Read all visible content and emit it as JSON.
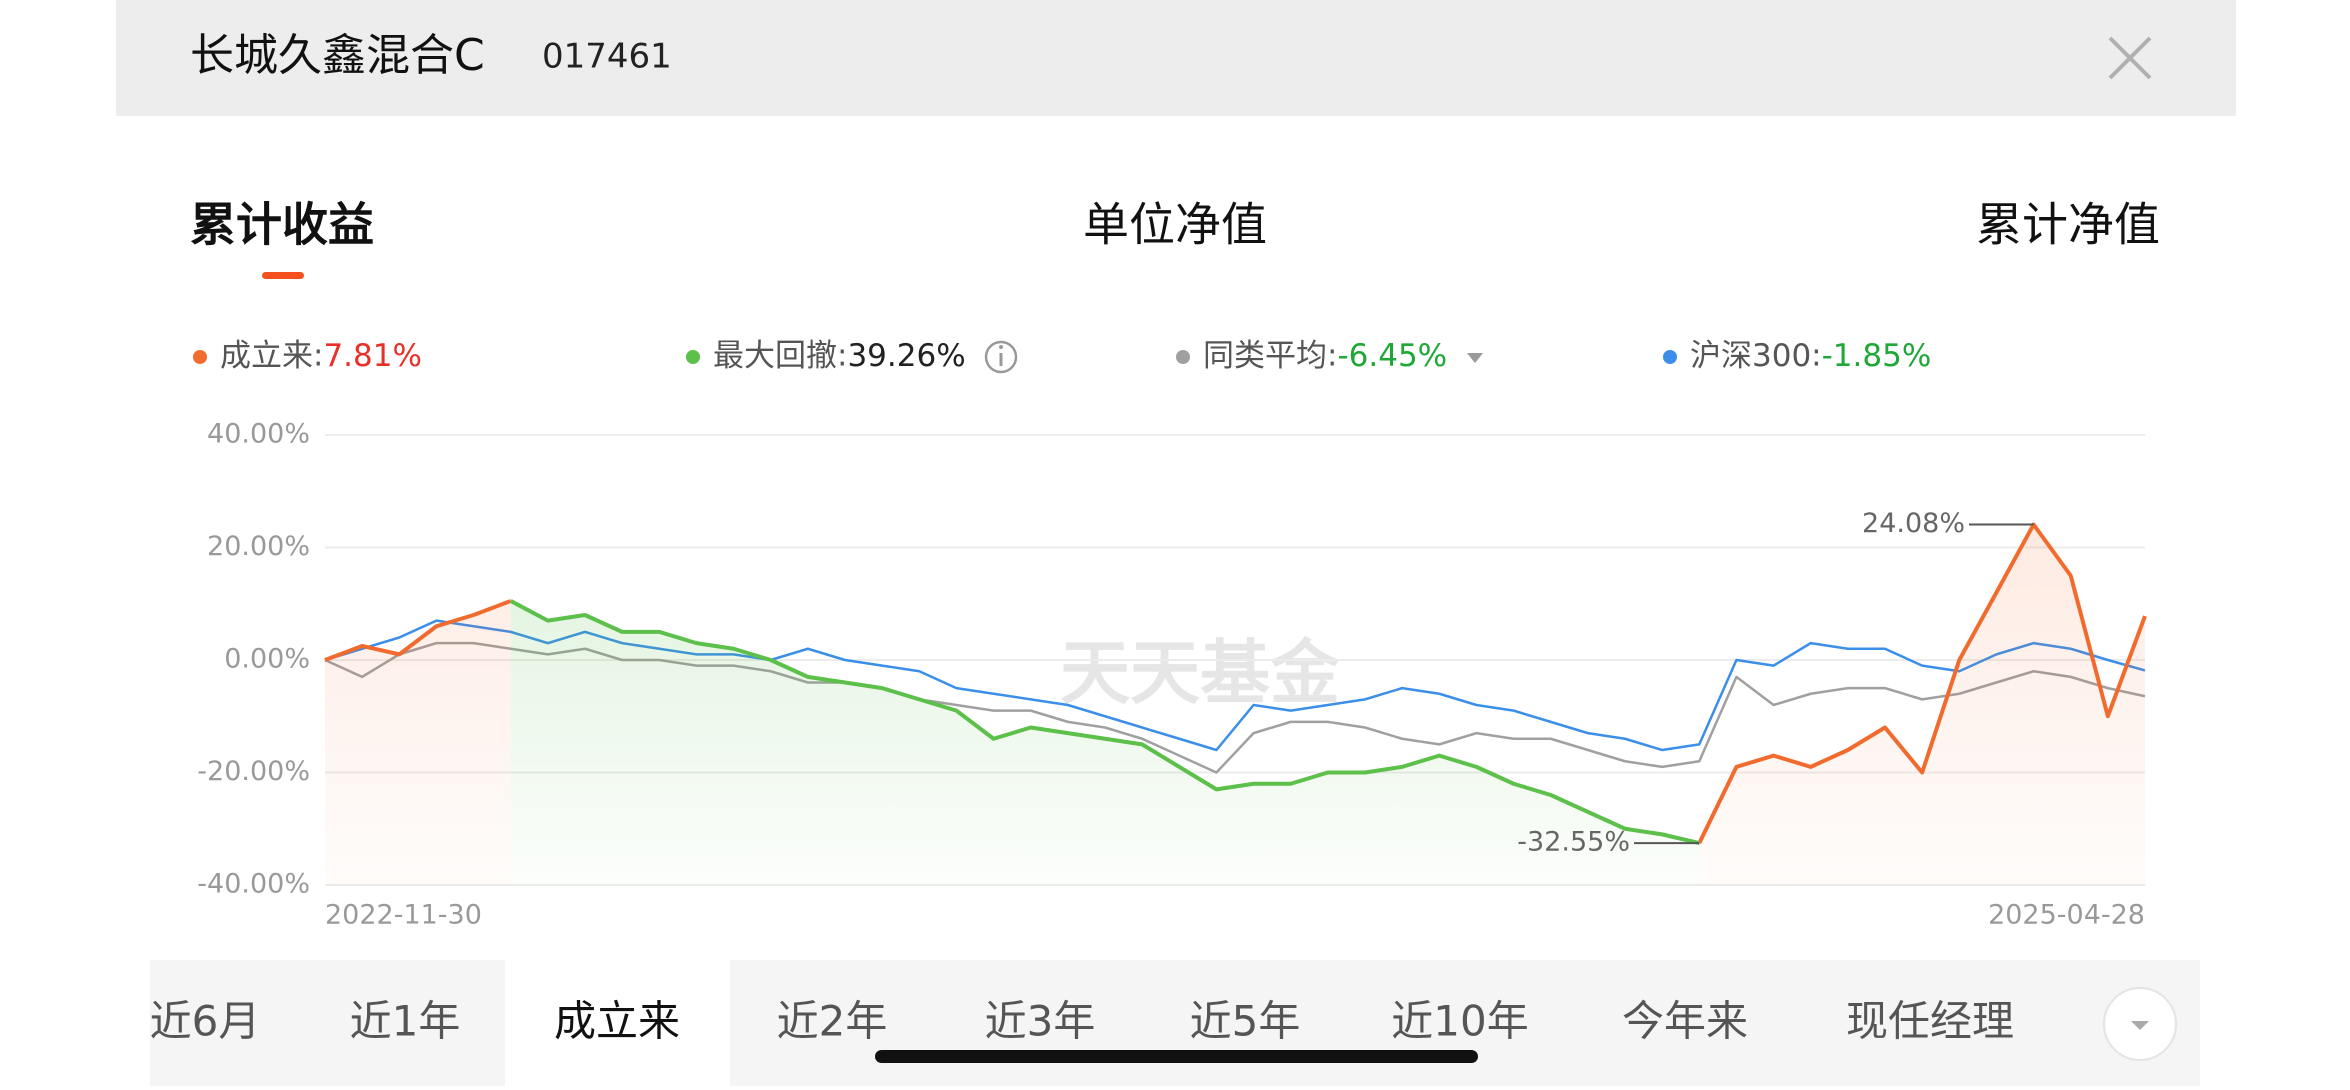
{
  "header": {
    "title": "长城久鑫混合C",
    "code": "017461"
  },
  "metric_tabs": [
    "累计收益",
    "单位净值",
    "累计净值"
  ],
  "period_tabs": [
    "近6月",
    "近1年",
    "成立来",
    "近2年",
    "近3年",
    "近5年",
    "近10年",
    "今年来",
    "现任经理"
  ],
  "watermark": "天天基金",
  "chart_data": {
    "type": "line",
    "categories": [
      "2022-11-30",
      null,
      null,
      null,
      null,
      null,
      null,
      null,
      null,
      null,
      null,
      null,
      null,
      null,
      null,
      null,
      null,
      null,
      null,
      null,
      null,
      null,
      null,
      null,
      null,
      null,
      null,
      null,
      null,
      null,
      null,
      null,
      null,
      null,
      null,
      null,
      null,
      null,
      null,
      null,
      null,
      null,
      null,
      null,
      null,
      null,
      null,
      null,
      null,
      "2025-04-28"
    ],
    "ylim": [
      -40,
      40
    ],
    "yticks": [
      {
        "value": 40,
        "label": "40.00%"
      },
      {
        "value": 20,
        "label": "20.00%"
      },
      {
        "value": 0,
        "label": "0.00%"
      },
      {
        "value": -20,
        "label": "-20.00%"
      },
      {
        "value": -40,
        "label": "-40.00%"
      }
    ],
    "grid": true,
    "annotations": [
      "24.08%",
      "-32.55%"
    ],
    "series": [
      {
        "name": "同类平均",
        "summary": "-6.45%",
        "color": "#a0a0a0",
        "summary_color": "#1fa838",
        "values": [
          0,
          -3,
          1,
          3,
          3,
          2,
          1,
          2,
          0,
          0,
          -1,
          -1,
          -2,
          -4,
          -4,
          -5,
          -7,
          -8,
          -9,
          -9,
          -11,
          -12,
          -14,
          -17,
          -20,
          -13,
          -11,
          -11,
          -12,
          -14,
          -15,
          -13,
          -14,
          -14,
          -16,
          -18,
          -19,
          -18,
          -3,
          -8,
          -6,
          -5,
          -5,
          -7,
          -6,
          -4,
          -2,
          -3,
          -5,
          -6.45
        ]
      },
      {
        "name": "沪深300",
        "summary": "-1.85%",
        "color": "#3b8fe8",
        "summary_color": "#1fa838",
        "values": [
          0,
          2,
          4,
          7,
          6,
          5,
          3,
          5,
          3,
          2,
          1,
          1,
          0,
          2,
          0,
          -1,
          -2,
          -5,
          -6,
          -7,
          -8,
          -10,
          -12,
          -14,
          -16,
          -8,
          -9,
          -8,
          -7,
          -5,
          -6,
          -8,
          -9,
          -11,
          -13,
          -14,
          -16,
          -15,
          0,
          -1,
          3,
          2,
          2,
          -1,
          -2,
          1,
          3,
          2,
          0,
          -1.85
        ]
      },
      {
        "name": "成立来",
        "summary": "7.81%",
        "color": "#f26b2e",
        "summary_color": "#e8302a",
        "values": [
          0,
          2.5,
          1,
          6,
          8,
          10.5,
          null,
          null,
          null,
          null,
          null,
          null,
          null,
          null,
          null,
          null,
          null,
          null,
          null,
          null,
          null,
          null,
          null,
          null,
          null,
          null,
          null,
          null,
          null,
          null,
          null,
          null,
          null,
          null,
          null,
          null,
          null,
          -32.55,
          -19,
          -17,
          -19,
          -16,
          -12,
          -20,
          0,
          12,
          24.08,
          15,
          -10,
          7.81
        ]
      },
      {
        "name": "最大回撤",
        "summary": "39.26%",
        "color": "#5cc04a",
        "summary_color": "#222222",
        "values": [
          null,
          null,
          null,
          null,
          null,
          10.5,
          7,
          8,
          5,
          5,
          3,
          2,
          0,
          -3,
          -4,
          -5,
          -7,
          -9,
          -14,
          -12,
          -13,
          -14,
          -15,
          -19,
          -23,
          -22,
          -22,
          -20,
          -20,
          -19,
          -17,
          -19,
          -22,
          -24,
          -27,
          -30,
          -31,
          -32.55,
          null,
          null,
          null,
          null,
          null,
          null,
          null,
          null,
          null,
          null,
          null,
          null
        ]
      }
    ]
  }
}
